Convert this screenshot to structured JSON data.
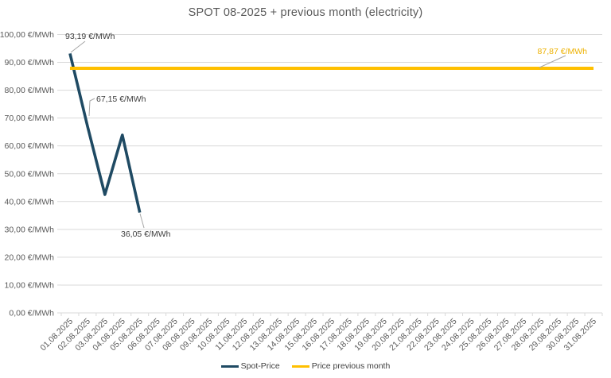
{
  "chart_data": {
    "type": "line",
    "title": "SPOT 08-2025 + previous month (electricity)",
    "legend_position": "bottom",
    "grid": "horizontal",
    "ylim": [
      0,
      100
    ],
    "y_tick_step": 10,
    "y_ticks": [
      {
        "value": 0,
        "label": "0,00 €/MWh"
      },
      {
        "value": 10,
        "label": "10,00 €/MWh"
      },
      {
        "value": 20,
        "label": "20,00 €/MWh"
      },
      {
        "value": 30,
        "label": "30,00 €/MWh"
      },
      {
        "value": 40,
        "label": "40,00 €/MWh"
      },
      {
        "value": 50,
        "label": "50,00 €/MWh"
      },
      {
        "value": 60,
        "label": "60,00 €/MWh"
      },
      {
        "value": 70,
        "label": "70,00 €/MWh"
      },
      {
        "value": 80,
        "label": "80,00 €/MWh"
      },
      {
        "value": 90,
        "label": "90,00 €/MWh"
      },
      {
        "value": 100,
        "label": "100,00 €/MWh"
      }
    ],
    "categories": [
      "01.08.2025",
      "02.08.2025",
      "03.08.2025",
      "04.08.2025",
      "05.08.2025",
      "06.08.2025",
      "07.08.2025",
      "08.08.2025",
      "09.08.2025",
      "10.08.2025",
      "11.08.2025",
      "12.08.2025",
      "13.08.2025",
      "14.08.2025",
      "15.08.2025",
      "16.08.2025",
      "17.08.2025",
      "18.08.2025",
      "19.08.2025",
      "20.08.2025",
      "21.08.2025",
      "22.08.2025",
      "23.08.2025",
      "24.08.2025",
      "25.08.2025",
      "26.08.2025",
      "27.08.2025",
      "28.08.2025",
      "29.08.2025",
      "30.08.2025",
      "31.08.2025"
    ],
    "series": [
      {
        "name": "Spot-Price",
        "color": "#1f4a63",
        "values": [
          93.19,
          67.15,
          42.5,
          63.9,
          36.05,
          null,
          null,
          null,
          null,
          null,
          null,
          null,
          null,
          null,
          null,
          null,
          null,
          null,
          null,
          null,
          null,
          null,
          null,
          null,
          null,
          null,
          null,
          null,
          null,
          null,
          null
        ]
      },
      {
        "name": "Price previous month",
        "color": "#ffc000",
        "constant": 87.87
      }
    ],
    "annotations": [
      {
        "series": "Spot-Price",
        "category": "01.08.2025",
        "text": "93,19 €/MWh",
        "color": "#404040"
      },
      {
        "series": "Spot-Price",
        "category": "02.08.2025",
        "text": "67,15 €/MWh",
        "color": "#404040"
      },
      {
        "series": "Spot-Price",
        "category": "05.08.2025",
        "text": "36,05 €/MWh",
        "color": "#404040"
      },
      {
        "series": "Price previous month",
        "text": "87,87 €/MWh",
        "color": "#edb100"
      }
    ],
    "colors": {
      "title": "#595959",
      "axis_text": "#595959",
      "grid": "#d9d9d9",
      "annotation_text": "#404040",
      "annotation_leader": "#a6a6a6",
      "legend_text": "#404040",
      "background": "#ffffff"
    }
  }
}
